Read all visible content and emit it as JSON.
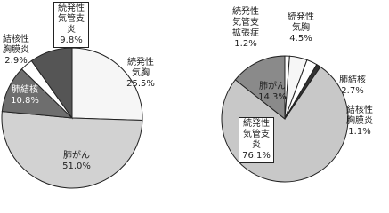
{
  "chart_data": [
    {
      "type": "pie",
      "categories": [
        "続発性気胸",
        "肺がん",
        "肺結核",
        "結核性胸膜炎",
        "続発性気管支炎"
      ],
      "values": [
        25.5,
        51.0,
        10.8,
        2.9,
        9.8
      ],
      "value_labels": [
        "25.5%",
        "51.0%",
        "10.8%",
        "2.9%",
        "9.8%"
      ],
      "colors": [
        "#f6f6f6",
        "#d2d2d2",
        "#6e6e6e",
        "#ffffff",
        "#555555"
      ]
    },
    {
      "type": "pie",
      "categories": [
        "続発性気管支拡張症",
        "続発性気胸",
        "肺結核",
        "結核性胸膜炎",
        "続発性気管支炎",
        "肺がん"
      ],
      "values": [
        1.2,
        4.5,
        2.7,
        1.1,
        76.1,
        14.3
      ],
      "value_labels": [
        "1.2%",
        "4.5%",
        "2.7%",
        "1.1%",
        "76.1%",
        "14.3%"
      ],
      "colors": [
        "#ffffff",
        "#f6f6f6",
        "#ffffff",
        "#333333",
        "#c8c8c8",
        "#8a8a8a"
      ]
    }
  ]
}
